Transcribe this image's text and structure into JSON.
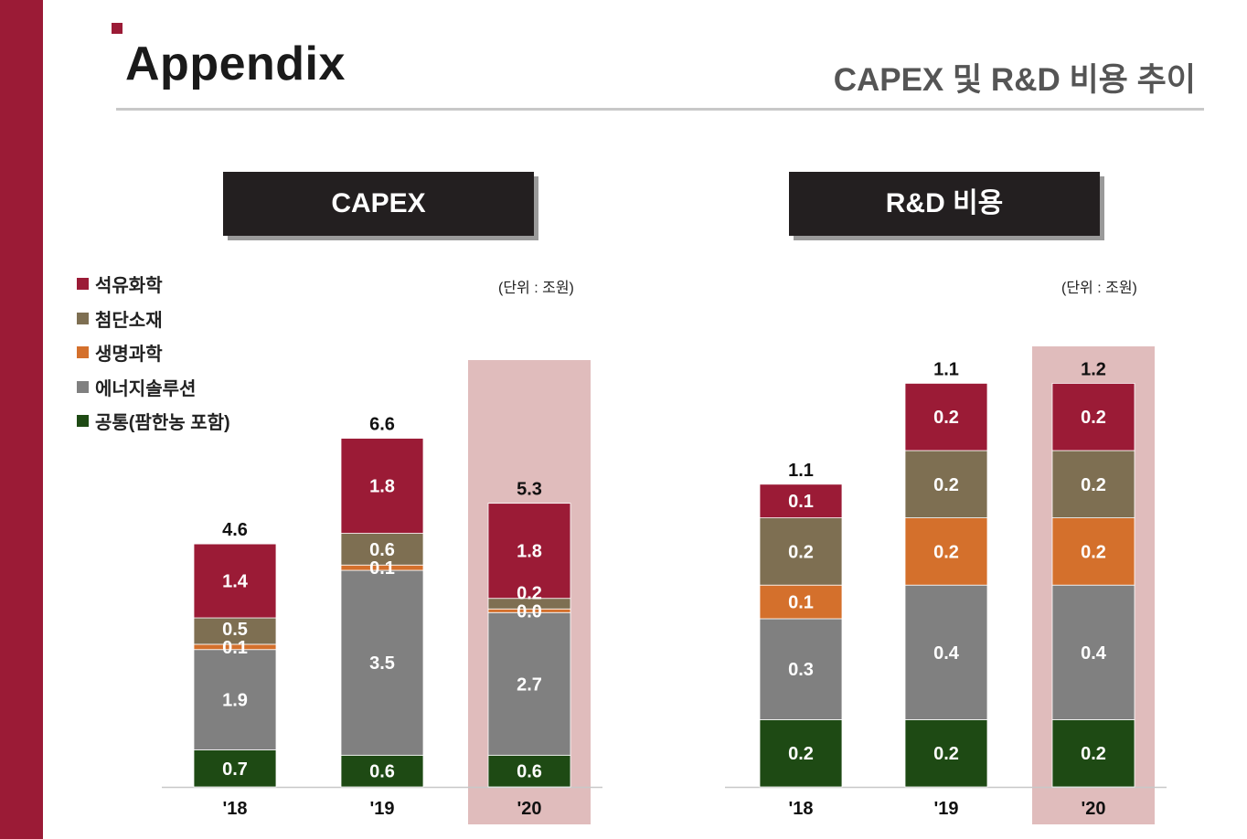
{
  "header": {
    "title": "Appendix",
    "subtitle": "CAPEX 및 R&D 비용 추이"
  },
  "panels": {
    "capex": {
      "heading": "CAPEX",
      "unit": "(단위 : 조원)"
    },
    "rd": {
      "heading": "R&D 비용",
      "unit": "(단위 : 조원)"
    }
  },
  "colors": {
    "brand": "#9b1b36",
    "highlight": "#e0bcbc",
    "axis": "#c8c8c8"
  },
  "chart_data": [
    {
      "type": "bar",
      "stacked": true,
      "title": "CAPEX",
      "unit": "(단위 : 조원)",
      "categories": [
        "'18",
        "'19",
        "'20"
      ],
      "highlight_category": "'20",
      "totals": [
        "4.6",
        "6.6",
        "5.3"
      ],
      "legend_position": "top-left",
      "series": [
        {
          "name": "공통(팜한농 포함)",
          "color": "#1e4a14",
          "values": [
            0.7,
            0.6,
            0.6
          ],
          "labels": [
            "0.7",
            "0.6",
            "0.6"
          ]
        },
        {
          "name": "에너지솔루션",
          "color": "#808080",
          "values": [
            1.9,
            3.5,
            2.7
          ],
          "labels": [
            "1.9",
            "3.5",
            "2.7"
          ]
        },
        {
          "name": "생명과학",
          "color": "#d4702c",
          "values": [
            0.1,
            0.1,
            0.0
          ],
          "labels": [
            "0.1",
            "0.1",
            "0.0"
          ]
        },
        {
          "name": "첨단소재",
          "color": "#7e6f52",
          "values": [
            0.5,
            0.6,
            0.2
          ],
          "labels": [
            "0.5",
            "0.6",
            "0.2"
          ]
        },
        {
          "name": "석유화학",
          "color": "#9b1b36",
          "values": [
            1.4,
            1.8,
            1.8
          ],
          "labels": [
            "1.4",
            "1.8",
            "1.8"
          ]
        }
      ]
    },
    {
      "type": "bar",
      "stacked": true,
      "title": "R&D 비용",
      "unit": "(단위 : 조원)",
      "categories": [
        "'18",
        "'19",
        "'20"
      ],
      "highlight_category": "'20",
      "totals": [
        "1.1",
        "1.1",
        "1.2"
      ],
      "series": [
        {
          "name": "공통(팜한농 포함)",
          "color": "#1e4a14",
          "values": [
            0.2,
            0.2,
            0.2
          ],
          "labels": [
            "0.2",
            "0.2",
            "0.2"
          ]
        },
        {
          "name": "에너지솔루션",
          "color": "#808080",
          "values": [
            0.3,
            0.4,
            0.4
          ],
          "labels": [
            "0.3",
            "0.4",
            "0.4"
          ]
        },
        {
          "name": "생명과학",
          "color": "#d4702c",
          "values": [
            0.1,
            0.2,
            0.2
          ],
          "labels": [
            "0.1",
            "0.2",
            "0.2"
          ]
        },
        {
          "name": "첨단소재",
          "color": "#7e6f52",
          "values": [
            0.2,
            0.2,
            0.2
          ],
          "labels": [
            "0.2",
            "0.2",
            "0.2"
          ]
        },
        {
          "name": "석유화학",
          "color": "#9b1b36",
          "values": [
            0.1,
            0.2,
            0.2
          ],
          "labels": [
            "0.1",
            "0.2",
            "0.2"
          ]
        }
      ]
    }
  ]
}
